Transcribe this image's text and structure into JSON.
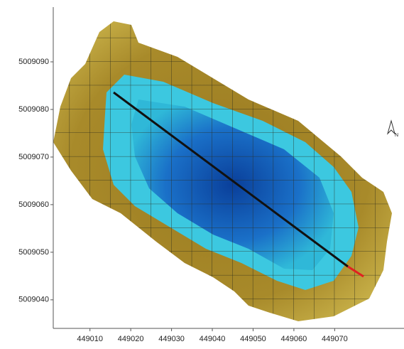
{
  "map": {
    "xlim": [
      449001,
      449087
    ],
    "ylim": [
      5009034,
      5009101.5
    ],
    "xticks": [
      449010,
      449020,
      449030,
      449040,
      449050,
      449060,
      449070
    ],
    "yticks": [
      5009040,
      5009050,
      5009060,
      5009070,
      5009080,
      5009090
    ],
    "north_label": "N"
  }
}
